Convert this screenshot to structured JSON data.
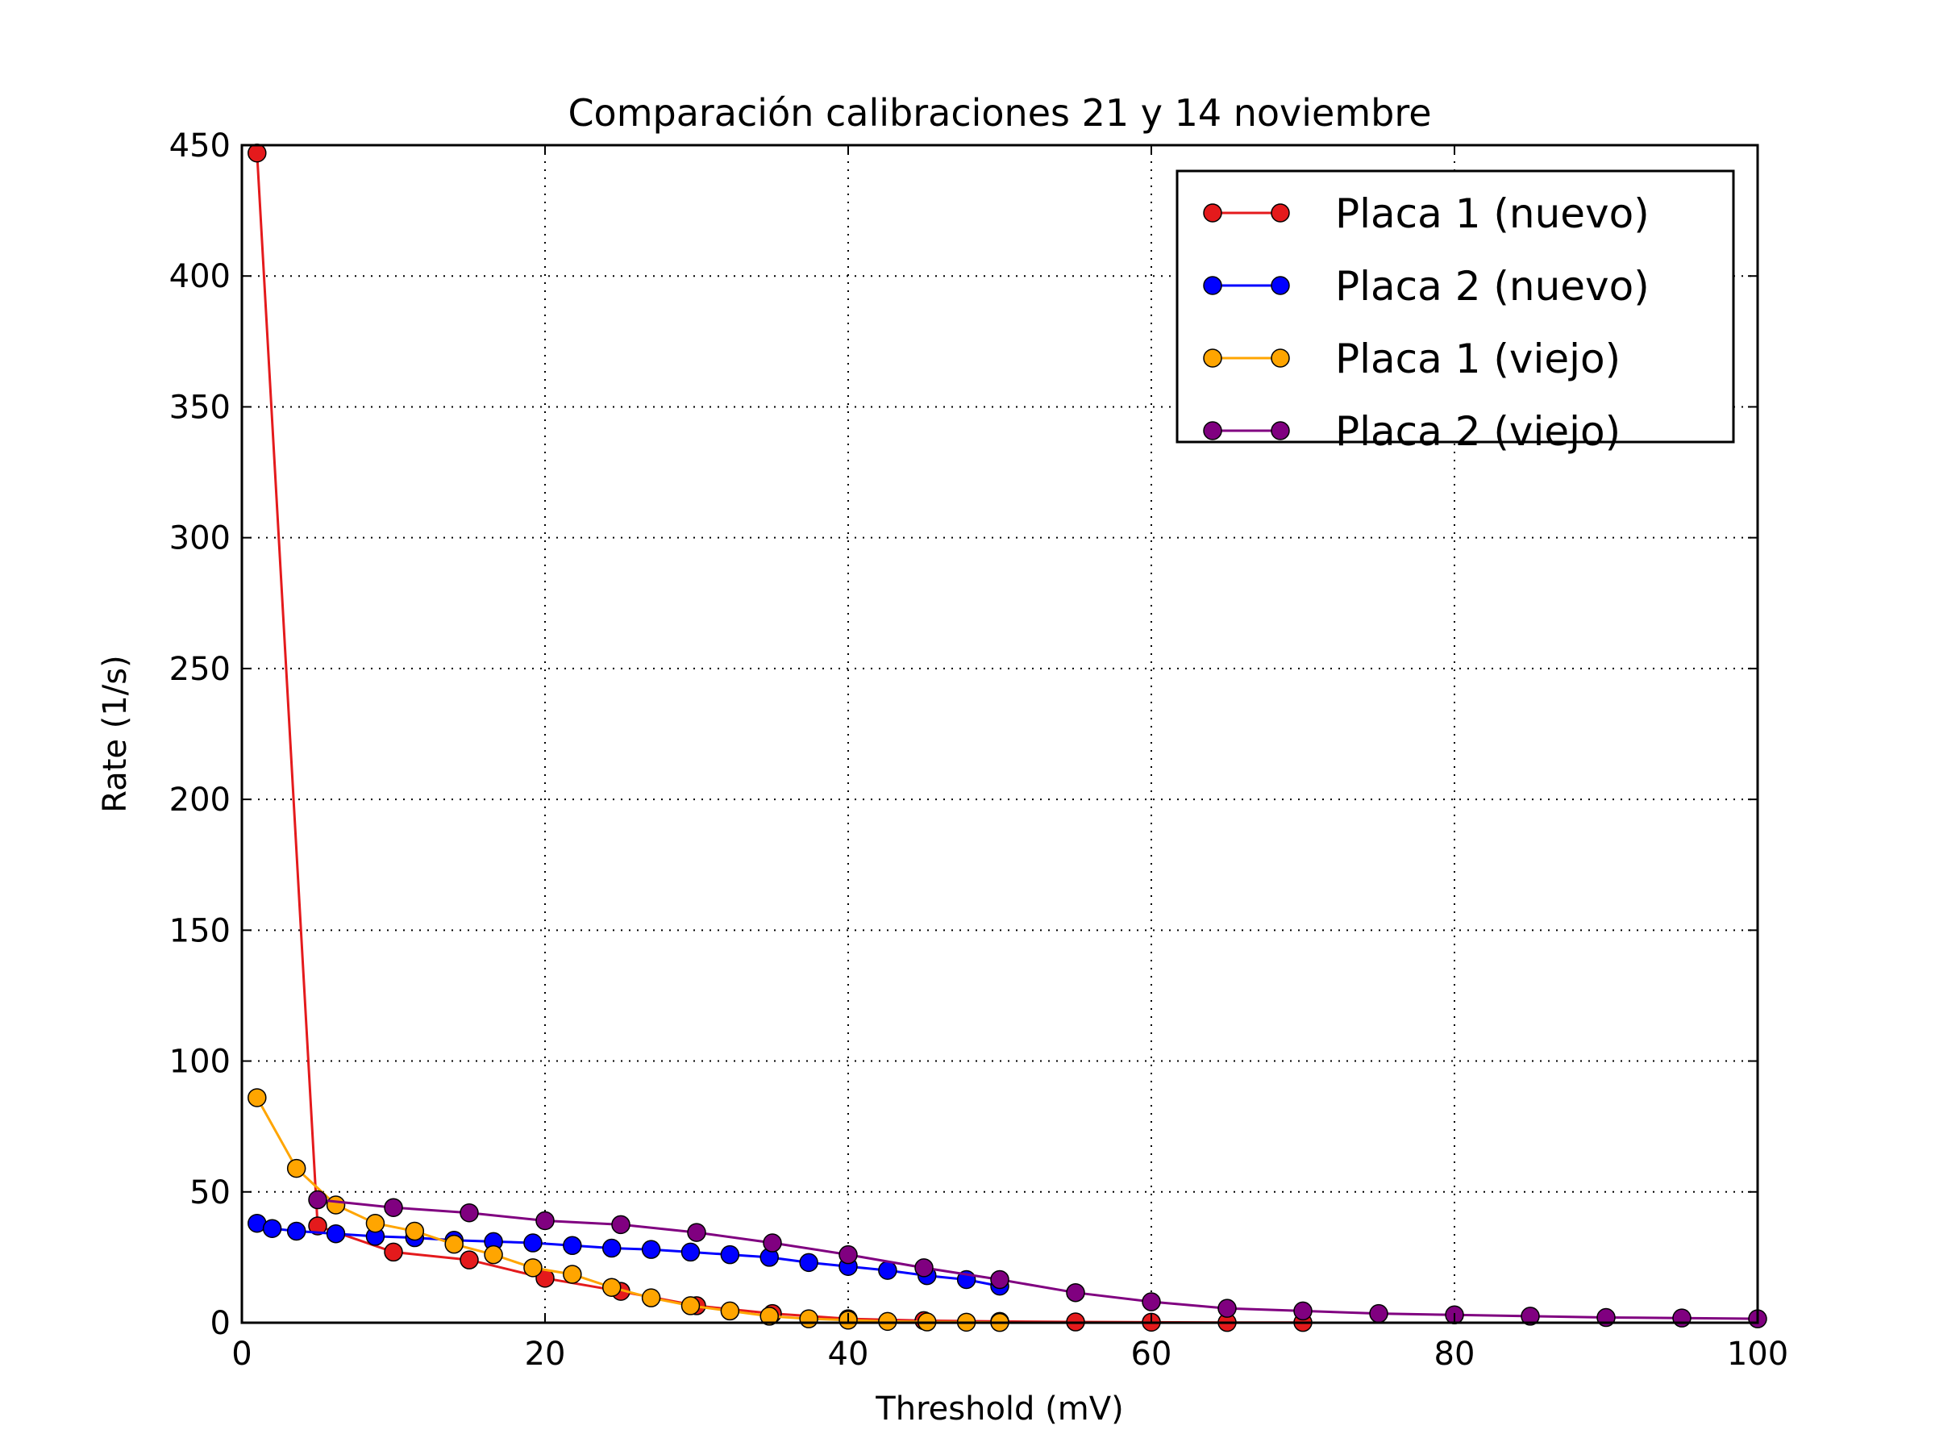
{
  "chart_data": {
    "type": "line",
    "title": "Comparación calibraciones 21 y 14 noviembre",
    "xlabel": "Threshold (mV)",
    "ylabel": "Rate (1/s)",
    "xlim": [
      0,
      100
    ],
    "ylim": [
      0,
      450
    ],
    "xticks": [
      0,
      20,
      40,
      60,
      80,
      100
    ],
    "yticks": [
      0,
      50,
      100,
      150,
      200,
      250,
      300,
      350,
      400,
      450
    ],
    "grid": true,
    "grid_style": "dotted",
    "legend_position": "top-right",
    "series": [
      {
        "name": "Placa 1 (nuevo)",
        "color": "#e41a1c",
        "x": [
          1,
          5,
          10,
          15,
          20,
          25,
          30,
          35,
          40,
          45,
          50,
          55,
          60,
          65,
          70
        ],
        "y": [
          447,
          37,
          27,
          24,
          17,
          12,
          6.5,
          3.5,
          1.5,
          0.8,
          0.5,
          0.3,
          0.2,
          0.1,
          0.1
        ]
      },
      {
        "name": "Placa 2 (nuevo)",
        "color": "#0000ff",
        "x": [
          1,
          2,
          3.6,
          6.2,
          8.8,
          11.4,
          14,
          16.6,
          19.2,
          21.8,
          24.4,
          27,
          29.6,
          32.2,
          34.8,
          37.4,
          40,
          42.6,
          45.2,
          47.8,
          50
        ],
        "y": [
          38,
          36,
          35,
          34,
          33,
          32.5,
          31.5,
          31,
          30.5,
          29.5,
          28.5,
          28,
          27,
          26,
          25,
          23,
          21.5,
          20,
          18,
          16.5,
          14
        ]
      },
      {
        "name": "Placa 1 (viejo)",
        "color": "#ffa500",
        "x": [
          1,
          3.6,
          6.2,
          8.8,
          11.4,
          14,
          16.6,
          19.2,
          21.8,
          24.4,
          27,
          29.6,
          32.2,
          34.8,
          37.4,
          40,
          42.6,
          45.2,
          47.8,
          50
        ],
        "y": [
          86,
          59,
          45,
          38,
          35,
          30,
          26,
          21,
          18.5,
          13.5,
          9.5,
          6.5,
          4.5,
          2.5,
          1.5,
          1,
          0.5,
          0.3,
          0.2,
          0.1
        ]
      },
      {
        "name": "Placa 2 (viejo)",
        "color": "#800080",
        "x": [
          5,
          10,
          15,
          20,
          25,
          30,
          35,
          40,
          45,
          50,
          55,
          60,
          65,
          70,
          75,
          80,
          85,
          90,
          95,
          100
        ],
        "y": [
          47,
          44,
          42,
          39,
          37.5,
          34.5,
          30.5,
          26,
          21,
          16.5,
          11.5,
          8,
          5.5,
          4.5,
          3.5,
          3,
          2.5,
          2,
          1.8,
          1.5
        ]
      }
    ]
  }
}
